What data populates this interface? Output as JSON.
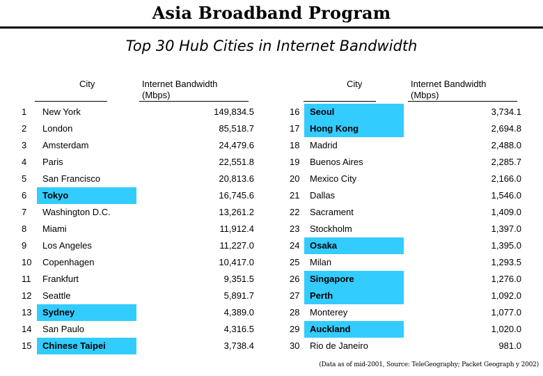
{
  "header": {
    "title": "Asia Broadband Program",
    "subtitle": "Top 30 Hub Cities in Internet Bandwidth"
  },
  "columns": {
    "city": "City",
    "bandwidth_line1": "Internet Bandwidth",
    "bandwidth_line2": "(Mbps)"
  },
  "left_rows": [
    {
      "rank": "1",
      "city": "New York",
      "bw": "149,834.5",
      "highlight": false
    },
    {
      "rank": "2",
      "city": "London",
      "bw": "85,518.7",
      "highlight": false
    },
    {
      "rank": "3",
      "city": "Amsterdam",
      "bw": "24,479.6",
      "highlight": false
    },
    {
      "rank": "4",
      "city": "Paris",
      "bw": "22,551.8",
      "highlight": false
    },
    {
      "rank": "5",
      "city": "San Francisco",
      "bw": "20,813.6",
      "highlight": false
    },
    {
      "rank": "6",
      "city": "Tokyo",
      "bw": "16,745.6",
      "highlight": true
    },
    {
      "rank": "7",
      "city": "Washington D.C.",
      "bw": "13,261.2",
      "highlight": false
    },
    {
      "rank": "8",
      "city": "Miami",
      "bw": "11,912.4",
      "highlight": false
    },
    {
      "rank": "9",
      "city": "Los Angeles",
      "bw": "11,227.0",
      "highlight": false
    },
    {
      "rank": "10",
      "city": "Copenhagen",
      "bw": "10,417.0",
      "highlight": false
    },
    {
      "rank": "11",
      "city": "Frankfurt",
      "bw": "9,351.5",
      "highlight": false
    },
    {
      "rank": "12",
      "city": "Seattle",
      "bw": "5,891.7",
      "highlight": false
    },
    {
      "rank": "13",
      "city": "Sydney",
      "bw": "4,389.0",
      "highlight": true
    },
    {
      "rank": "14",
      "city": "San Paulo",
      "bw": "4,316.5",
      "highlight": false
    },
    {
      "rank": "15",
      "city": "Chinese Taipei",
      "bw": "3,738.4",
      "highlight": true
    }
  ],
  "right_rows": [
    {
      "rank": "16",
      "city": "Seoul",
      "bw": "3,734.1",
      "highlight": true
    },
    {
      "rank": "17",
      "city": "Hong Kong",
      "bw": "2,694.8",
      "highlight": true
    },
    {
      "rank": "18",
      "city": "Madrid",
      "bw": "2,488.0",
      "highlight": false
    },
    {
      "rank": "19",
      "city": "Buenos Aires",
      "bw": "2,285.7",
      "highlight": false
    },
    {
      "rank": "20",
      "city": "Mexico City",
      "bw": "2,166.0",
      "highlight": false
    },
    {
      "rank": "21",
      "city": "Dallas",
      "bw": "1,546.0",
      "highlight": false
    },
    {
      "rank": "22",
      "city": "Sacrament",
      "bw": "1,409.0",
      "highlight": false
    },
    {
      "rank": "23",
      "city": "Stockholm",
      "bw": "1,397.0",
      "highlight": false
    },
    {
      "rank": "24",
      "city": "Osaka",
      "bw": "1,395.0",
      "highlight": true
    },
    {
      "rank": "25",
      "city": "Milan",
      "bw": "1,293.5",
      "highlight": false
    },
    {
      "rank": "26",
      "city": "Singapore",
      "bw": "1,276.0",
      "highlight": true
    },
    {
      "rank": "27",
      "city": "Perth",
      "bw": "1,092.0",
      "highlight": true
    },
    {
      "rank": "28",
      "city": "Monterey",
      "bw": "1,077.0",
      "highlight": false
    },
    {
      "rank": "29",
      "city": "Auckland",
      "bw": "1,020.0",
      "highlight": true
    },
    {
      "rank": "30",
      "city": "Rio de Janeiro",
      "bw": "981.0",
      "highlight": false
    }
  ],
  "footnote": "(Data as of mid-2001, Source: TeleGeography;  Packet Geograph y 2002)",
  "colors": {
    "highlight": "#33ccff"
  }
}
